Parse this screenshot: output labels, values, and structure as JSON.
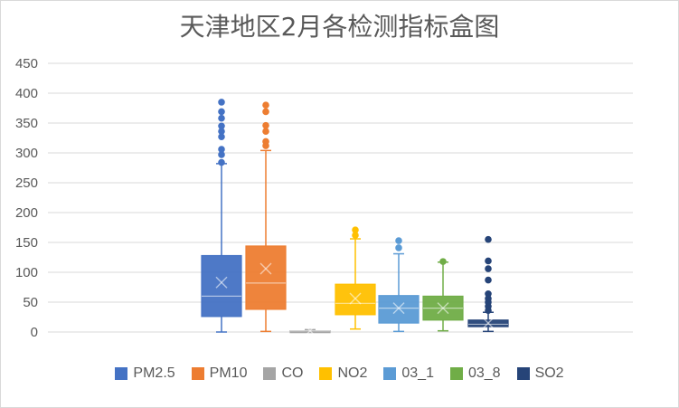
{
  "chart_data": {
    "type": "box",
    "title": "天津地区2月各检测指标盒图",
    "ylim": [
      0,
      450
    ],
    "yticks": [
      "0",
      "50",
      "100",
      "150",
      "200",
      "250",
      "300",
      "350",
      "400",
      "450"
    ],
    "grid": true,
    "legend_position": "bottom",
    "series": [
      {
        "name": "PM2.5",
        "color": "#4472C4",
        "whisker_low": 0,
        "q1": 26,
        "median": 60,
        "q3": 128,
        "whisker_high": 282,
        "mean": 83,
        "outliers": [
          284,
          297,
          306,
          327,
          336,
          345,
          358,
          369,
          385
        ]
      },
      {
        "name": "PM10",
        "color": "#ED7D31",
        "whisker_low": 1,
        "q1": 38,
        "median": 82,
        "q3": 144,
        "whisker_high": 304,
        "mean": 106,
        "outliers": [
          312,
          319,
          336,
          346,
          369,
          380
        ]
      },
      {
        "name": "CO",
        "color": "#A5A5A5",
        "whisker_low": 0,
        "q1": 1,
        "median": 2,
        "q3": 2,
        "whisker_high": 4,
        "mean": 2,
        "outliers": []
      },
      {
        "name": "NO2",
        "color": "#FFC000",
        "whisker_low": 5,
        "q1": 29,
        "median": 48,
        "q3": 80,
        "whisker_high": 156,
        "mean": 56,
        "outliers": [
          162,
          171
        ]
      },
      {
        "name": "03_1",
        "color": "#5B9BD5",
        "whisker_low": 1,
        "q1": 15,
        "median": 40,
        "q3": 61,
        "whisker_high": 131,
        "mean": 40,
        "outliers": [
          141,
          153
        ]
      },
      {
        "name": "03_8",
        "color": "#70AD47",
        "whisker_low": 2,
        "q1": 20,
        "median": 40,
        "q3": 60,
        "whisker_high": 117,
        "mean": 40,
        "outliers": [
          118
        ]
      },
      {
        "name": "SO2",
        "color": "#264478",
        "whisker_low": 1,
        "q1": 9,
        "median": 13,
        "q3": 20,
        "whisker_high": 33,
        "mean": 15,
        "outliers": [
          36,
          43,
          50,
          56,
          64,
          87,
          106,
          119,
          155
        ]
      }
    ]
  }
}
